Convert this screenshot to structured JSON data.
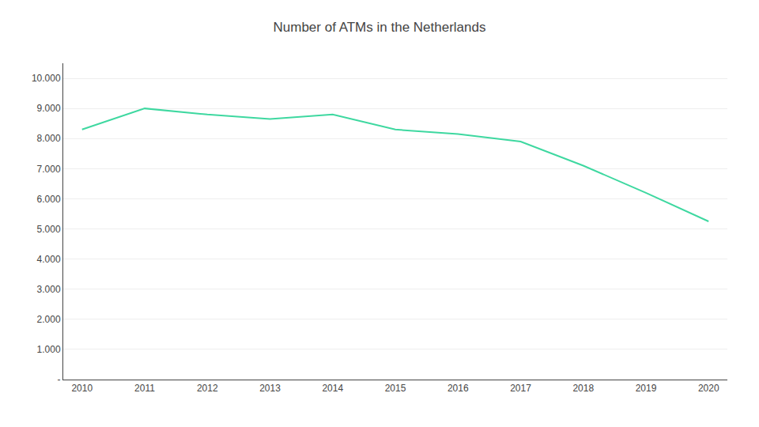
{
  "chart_data": {
    "type": "line",
    "title": "Number of ATMs in the Netherlands",
    "x": [
      2010,
      2011,
      2012,
      2013,
      2014,
      2015,
      2016,
      2017,
      2018,
      2019,
      2020
    ],
    "values": [
      8300,
      9000,
      8800,
      8650,
      8800,
      8300,
      8150,
      7900,
      7100,
      6200,
      5250
    ],
    "color": "#3ed8a0",
    "xlim": [
      2009.7,
      2020.3
    ],
    "xticks": [
      2010,
      2011,
      2012,
      2013,
      2014,
      2015,
      2016,
      2017,
      2018,
      2019,
      2020
    ],
    "ylim": [
      0,
      10500
    ],
    "yticks": [
      {
        "value": 0,
        "label": "-"
      },
      {
        "value": 1000,
        "label": "1.000"
      },
      {
        "value": 2000,
        "label": "2.000"
      },
      {
        "value": 3000,
        "label": "3.000"
      },
      {
        "value": 4000,
        "label": "4.000"
      },
      {
        "value": 5000,
        "label": "5.000"
      },
      {
        "value": 6000,
        "label": "6.000"
      },
      {
        "value": 7000,
        "label": "7.000"
      },
      {
        "value": 8000,
        "label": "8.000"
      },
      {
        "value": 9000,
        "label": "9.000"
      },
      {
        "value": 10000,
        "label": "10.000"
      }
    ],
    "grid": true
  }
}
